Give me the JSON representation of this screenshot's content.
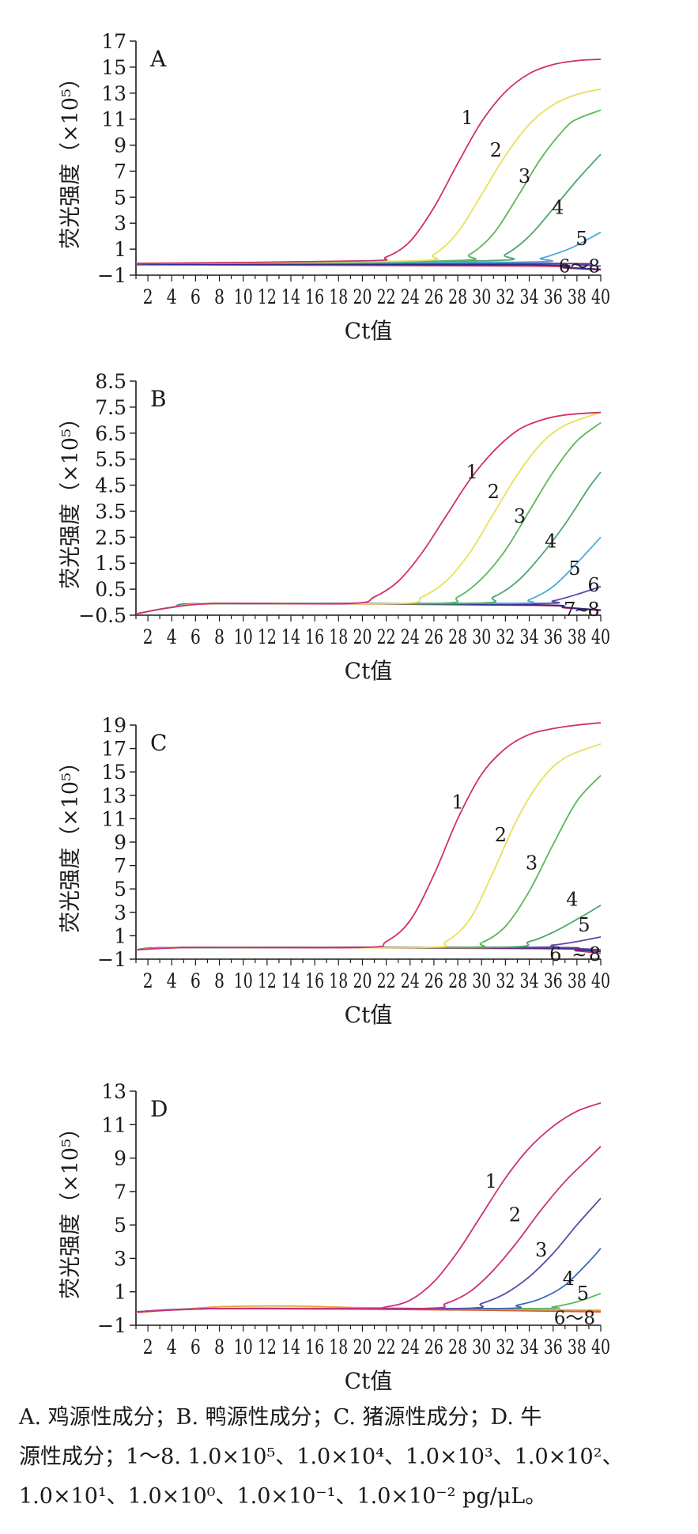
{
  "chart_data": [
    {
      "type": "line",
      "panel_label": "A",
      "xlabel": "Ct值",
      "ylabel": "荧光强度（×10⁵）",
      "xlim": [
        1,
        40
      ],
      "ylim": [
        -1,
        17
      ],
      "x_ticks": [
        2,
        4,
        6,
        8,
        10,
        12,
        14,
        16,
        18,
        20,
        22,
        24,
        26,
        28,
        30,
        32,
        34,
        36,
        38,
        40
      ],
      "y_ticks": [
        -1,
        1,
        3,
        5,
        7,
        9,
        11,
        13,
        15,
        17
      ],
      "y_tick_labels": [
        "−1",
        "1",
        "3",
        "5",
        "7",
        "9",
        "11",
        "13",
        "15",
        "17"
      ],
      "series": [
        {
          "name": "1",
          "color": "#d0306a",
          "label_at": [
            28.8,
            11.1
          ],
          "x": [
            1,
            20,
            22,
            24,
            26,
            28,
            30,
            32,
            34,
            36,
            38,
            40
          ],
          "y": [
            -0.1,
            0.1,
            0.4,
            1.6,
            4.2,
            7.6,
            10.8,
            13.1,
            14.5,
            15.2,
            15.5,
            15.6
          ]
        },
        {
          "name": "2",
          "color": "#e8e05a",
          "label_at": [
            31.2,
            8.6
          ],
          "x": [
            1,
            24,
            26,
            28,
            30,
            32,
            34,
            36,
            38,
            40
          ],
          "y": [
            -0.1,
            0.1,
            0.6,
            2.3,
            5.2,
            8.2,
            10.6,
            12.1,
            12.9,
            13.3
          ]
        },
        {
          "name": "3",
          "color": "#5ab85a",
          "label_at": [
            33.6,
            6.6
          ],
          "x": [
            1,
            27,
            29,
            31,
            33,
            35,
            37,
            38,
            40
          ],
          "y": [
            -0.1,
            0.1,
            0.6,
            2.2,
            5.0,
            8.0,
            10.3,
            11.0,
            11.7
          ]
        },
        {
          "name": "4",
          "color": "#4aa86a",
          "label_at": [
            36.4,
            4.2
          ],
          "x": [
            1,
            30,
            32,
            34,
            36,
            38,
            40
          ],
          "y": [
            -0.1,
            0.1,
            0.6,
            2.0,
            4.1,
            6.3,
            8.3
          ]
        },
        {
          "name": "5",
          "color": "#4aa8d8",
          "label_at": [
            38.4,
            1.8
          ],
          "x": [
            1,
            33,
            35,
            37,
            38,
            39,
            40
          ],
          "y": [
            -0.1,
            0.0,
            0.3,
            0.9,
            1.3,
            1.8,
            2.3
          ]
        },
        {
          "name": "6",
          "color": "#6a3a9a",
          "x": [
            1,
            36,
            38,
            40
          ],
          "y": [
            -0.1,
            -0.1,
            -0.2,
            -0.3
          ]
        },
        {
          "name": "7",
          "color": "#2a2a8a",
          "x": [
            1,
            34,
            37,
            40
          ],
          "y": [
            -0.15,
            -0.2,
            -0.4,
            -0.55
          ]
        },
        {
          "name": "8",
          "color": "#c83060",
          "x": [
            1,
            34,
            37,
            40
          ],
          "y": [
            -0.2,
            -0.3,
            -0.45,
            -0.6
          ]
        }
      ],
      "annotations": [
        {
          "text": "6～8",
          "x": 38.2,
          "y": -0.3
        }
      ]
    },
    {
      "type": "line",
      "panel_label": "B",
      "xlabel": "Ct值",
      "ylabel": "荧光强度（×10⁵）",
      "xlim": [
        1,
        40
      ],
      "ylim": [
        -0.5,
        8.5
      ],
      "x_ticks": [
        2,
        4,
        6,
        8,
        10,
        12,
        14,
        16,
        18,
        20,
        22,
        24,
        26,
        28,
        30,
        32,
        34,
        36,
        38,
        40
      ],
      "y_ticks": [
        -0.5,
        0.5,
        1.5,
        2.5,
        3.5,
        4.5,
        5.5,
        6.5,
        7.5,
        8.5
      ],
      "y_tick_labels": [
        "−0.5",
        "0.5",
        "1.5",
        "2.5",
        "3.5",
        "4.5",
        "5.5",
        "6.5",
        "7.5",
        "8.5"
      ],
      "series": [
        {
          "name": "1",
          "color": "#d0306a",
          "label_at": [
            29.2,
            5.0
          ],
          "x": [
            1,
            4,
            8,
            19,
            21,
            23,
            25,
            27,
            29,
            31,
            33,
            35,
            37,
            40
          ],
          "y": [
            -0.45,
            -0.2,
            -0.05,
            -0.05,
            0.2,
            0.8,
            1.9,
            3.3,
            4.7,
            5.8,
            6.6,
            7.0,
            7.2,
            7.3
          ]
        },
        {
          "name": "2",
          "color": "#e8e05a",
          "label_at": [
            31.0,
            4.25
          ],
          "x": [
            1,
            4,
            8,
            23,
            25,
            27,
            29,
            31,
            33,
            35,
            37,
            40
          ],
          "y": [
            -0.45,
            -0.2,
            -0.05,
            -0.05,
            0.2,
            0.8,
            1.9,
            3.4,
            4.9,
            6.1,
            6.8,
            7.3
          ]
        },
        {
          "name": "3",
          "color": "#5ab85a",
          "label_at": [
            33.2,
            3.3
          ],
          "x": [
            1,
            4,
            8,
            26,
            28,
            30,
            32,
            34,
            36,
            38,
            40
          ],
          "y": [
            -0.45,
            -0.2,
            -0.05,
            -0.05,
            0.2,
            0.9,
            2.0,
            3.5,
            5.0,
            6.2,
            6.9
          ]
        },
        {
          "name": "4",
          "color": "#4aa86a",
          "label_at": [
            35.8,
            2.35
          ],
          "x": [
            1,
            4,
            8,
            29,
            31,
            33,
            35,
            37,
            39,
            40
          ],
          "y": [
            -0.45,
            -0.2,
            -0.05,
            -0.05,
            0.2,
            0.8,
            1.8,
            3.0,
            4.4,
            5.0
          ]
        },
        {
          "name": "5",
          "color": "#4aa8d8",
          "label_at": [
            37.8,
            1.3
          ],
          "x": [
            1,
            4,
            8,
            32,
            34,
            36,
            38,
            40
          ],
          "y": [
            -0.45,
            -0.2,
            -0.05,
            -0.05,
            0.1,
            0.6,
            1.5,
            2.5
          ]
        },
        {
          "name": "6",
          "color": "#5a4aa8",
          "label_at": [
            39.4,
            0.65
          ],
          "x": [
            1,
            4,
            8,
            34,
            36,
            38,
            40
          ],
          "y": [
            -0.45,
            -0.2,
            -0.05,
            -0.05,
            0.05,
            0.3,
            0.6
          ]
        },
        {
          "name": "7",
          "color": "#2a2a8a",
          "label_at": [
            37.4,
            -0.28
          ],
          "x": [
            1,
            4,
            8,
            34,
            37,
            40
          ],
          "y": [
            -0.45,
            -0.2,
            -0.05,
            -0.1,
            -0.2,
            -0.3
          ]
        },
        {
          "name": "8",
          "color": "#c83060",
          "label_at": [
            39.4,
            -0.28
          ],
          "x": [
            1,
            4,
            8,
            34,
            37,
            40
          ],
          "y": [
            -0.45,
            -0.2,
            -0.05,
            -0.12,
            -0.22,
            -0.32
          ]
        }
      ],
      "annotations": [
        {
          "text": "~",
          "x": 38.4,
          "y": -0.28
        }
      ]
    },
    {
      "type": "line",
      "panel_label": "C",
      "xlabel": "Ct值",
      "ylabel": "荧光强度（×10⁵）",
      "xlim": [
        1,
        40
      ],
      "ylim": [
        -1,
        19
      ],
      "x_ticks": [
        2,
        4,
        6,
        8,
        10,
        12,
        14,
        16,
        18,
        20,
        22,
        24,
        26,
        28,
        30,
        32,
        34,
        36,
        38,
        40
      ],
      "y_ticks": [
        -1,
        1,
        3,
        5,
        7,
        9,
        11,
        13,
        15,
        17,
        19
      ],
      "y_tick_labels": [
        "−1",
        "1",
        "3",
        "5",
        "7",
        "9",
        "11",
        "13",
        "15",
        "17",
        "19"
      ],
      "series": [
        {
          "name": "1",
          "color": "#d0306a",
          "label_at": [
            28.0,
            12.4
          ],
          "x": [
            1,
            6,
            20,
            22,
            24,
            26,
            28,
            30,
            32,
            34,
            36,
            38,
            40
          ],
          "y": [
            -0.2,
            0.0,
            0.0,
            0.5,
            2.3,
            6.2,
            11.0,
            14.8,
            17.0,
            18.2,
            18.7,
            19.0,
            19.2
          ]
        },
        {
          "name": "2",
          "color": "#e8e05a",
          "label_at": [
            31.6,
            9.6
          ],
          "x": [
            1,
            6,
            25,
            27,
            29,
            31,
            33,
            35,
            37,
            40
          ],
          "y": [
            -0.2,
            0.0,
            0.0,
            0.5,
            2.4,
            6.5,
            11.0,
            14.3,
            16.2,
            17.4
          ]
        },
        {
          "name": "3",
          "color": "#5ab85a",
          "label_at": [
            34.2,
            7.2
          ],
          "x": [
            1,
            6,
            28,
            30,
            32,
            34,
            36,
            38,
            40
          ],
          "y": [
            -0.2,
            0.0,
            0.0,
            0.4,
            1.8,
            4.8,
            8.8,
            12.5,
            14.7
          ]
        },
        {
          "name": "4",
          "color": "#4aa86a",
          "label_at": [
            37.6,
            4.1
          ],
          "x": [
            1,
            6,
            31,
            34,
            36,
            38,
            40
          ],
          "y": [
            -0.2,
            0.0,
            0.0,
            0.5,
            1.3,
            2.4,
            3.6
          ]
        },
        {
          "name": "5",
          "color": "#5a4aa8",
          "label_at": [
            38.6,
            1.9
          ],
          "x": [
            1,
            6,
            33,
            36,
            38,
            40
          ],
          "y": [
            -0.2,
            0.0,
            0.0,
            0.2,
            0.5,
            0.9
          ]
        },
        {
          "name": "6",
          "color": "#6a3a9a",
          "label_at": [
            36.2,
            -0.6
          ],
          "x": [
            1,
            6,
            35,
            38,
            40
          ],
          "y": [
            -0.2,
            0.0,
            0.0,
            -0.1,
            -0.2
          ]
        },
        {
          "name": "7",
          "color": "#2a2a8a",
          "x": [
            1,
            6,
            35,
            38,
            40
          ],
          "y": [
            -0.2,
            0.0,
            -0.05,
            -0.2,
            -0.35
          ]
        },
        {
          "name": "8",
          "color": "#c83060",
          "label_at": [
            39.5,
            -0.6
          ],
          "x": [
            1,
            6,
            35,
            38,
            40
          ],
          "y": [
            -0.2,
            0.0,
            -0.1,
            -0.3,
            -0.5
          ]
        }
      ],
      "annotations": [
        {
          "text": "~",
          "x": 38.2,
          "y": -0.6
        }
      ]
    },
    {
      "type": "line",
      "panel_label": "D",
      "xlabel": "Ct值",
      "ylabel": "荧光强度（×10⁵）",
      "xlim": [
        1,
        40
      ],
      "ylim": [
        -1,
        13
      ],
      "x_ticks": [
        2,
        4,
        6,
        8,
        10,
        12,
        14,
        16,
        18,
        20,
        22,
        24,
        26,
        28,
        30,
        32,
        34,
        36,
        38,
        40
      ],
      "y_ticks": [
        -1,
        1,
        3,
        5,
        7,
        9,
        11,
        13
      ],
      "y_tick_labels": [
        "−1",
        "1",
        "3",
        "5",
        "7",
        "9",
        "11",
        "13"
      ],
      "series": [
        {
          "name": "1",
          "color": "#c8307a",
          "label_at": [
            30.8,
            7.6
          ],
          "x": [
            1,
            8,
            20,
            22,
            24,
            26,
            28,
            30,
            32,
            34,
            36,
            38,
            40
          ],
          "y": [
            -0.2,
            0.0,
            0.0,
            0.1,
            0.5,
            1.6,
            3.4,
            5.6,
            7.8,
            9.6,
            10.9,
            11.8,
            12.3
          ]
        },
        {
          "name": "2",
          "color": "#c8307a",
          "label_at": [
            32.8,
            5.6
          ],
          "x": [
            1,
            8,
            25,
            27,
            29,
            31,
            33,
            35,
            37,
            39,
            40
          ],
          "y": [
            -0.2,
            0.0,
            0.0,
            0.3,
            1.0,
            2.3,
            4.0,
            5.9,
            7.6,
            9.0,
            9.7
          ]
        },
        {
          "name": "3",
          "color": "#5a4aa8",
          "label_at": [
            35.0,
            3.5
          ],
          "x": [
            1,
            8,
            28,
            30,
            32,
            34,
            36,
            38,
            40
          ],
          "y": [
            -0.2,
            0.0,
            0.0,
            0.3,
            0.9,
            1.9,
            3.3,
            5.0,
            6.6
          ]
        },
        {
          "name": "4",
          "color": "#3a6ab8",
          "label_at": [
            37.3,
            1.8
          ],
          "x": [
            1,
            8,
            31,
            33,
            35,
            37,
            39,
            40
          ],
          "y": [
            -0.2,
            0.0,
            0.0,
            0.2,
            0.6,
            1.4,
            2.8,
            3.6
          ]
        },
        {
          "name": "5",
          "color": "#5ab85a",
          "label_at": [
            38.5,
            0.9
          ],
          "x": [
            1,
            8,
            34,
            36,
            38,
            40
          ],
          "y": [
            -0.2,
            0.0,
            0.0,
            0.1,
            0.4,
            0.9
          ]
        },
        {
          "name": "6",
          "color": "#e8a030",
          "x": [
            1,
            8,
            14,
            20,
            30,
            40
          ],
          "y": [
            -0.25,
            0.1,
            0.15,
            0.05,
            -0.05,
            -0.1
          ]
        },
        {
          "name": "7",
          "color": "#a86ab0",
          "x": [
            1,
            8,
            30,
            40
          ],
          "y": [
            -0.2,
            0.0,
            -0.05,
            -0.15
          ]
        },
        {
          "name": "8",
          "color": "#d85a30",
          "x": [
            1,
            8,
            30,
            40
          ],
          "y": [
            -0.2,
            0.0,
            -0.1,
            -0.2
          ]
        }
      ],
      "annotations": [
        {
          "text": "6～8",
          "x": 37.8,
          "y": -0.55
        }
      ]
    }
  ],
  "caption": {
    "line1": "A. 鸡源性成分；B. 鸭源性成分；C. 猪源性成分；D. 牛",
    "line2": "源性成分；1～8. 1.0×10⁵、1.0×10⁴、1.0×10³、1.0×10²、",
    "line3": "1.0×10¹、1.0×10⁰、1.0×10⁻¹、1.0×10⁻² pg/μL。"
  }
}
